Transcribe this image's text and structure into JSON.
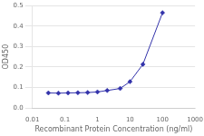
{
  "chart_data": {
    "type": "line",
    "xlabel": "Recombinant Protein Concentration (ng/ml)",
    "ylabel": "OD450",
    "x": [
      0.031,
      0.063,
      0.125,
      0.25,
      0.5,
      1,
      2,
      5,
      10,
      25,
      100
    ],
    "values": [
      0.073,
      0.072,
      0.073,
      0.074,
      0.075,
      0.078,
      0.085,
      0.095,
      0.128,
      0.213,
      0.465
    ],
    "color": "#3333aa",
    "marker": "diamond",
    "log": "x",
    "xlim": [
      0.01,
      1000
    ],
    "xticks": [
      0.01,
      0.1,
      1,
      10,
      100,
      1000
    ],
    "ylim": [
      0.0,
      0.5
    ],
    "yticks": [
      {
        "value": 0.0,
        "label": "0.0"
      },
      0.1,
      0.2,
      0.3,
      0.4,
      0.5
    ],
    "grid": "y"
  }
}
